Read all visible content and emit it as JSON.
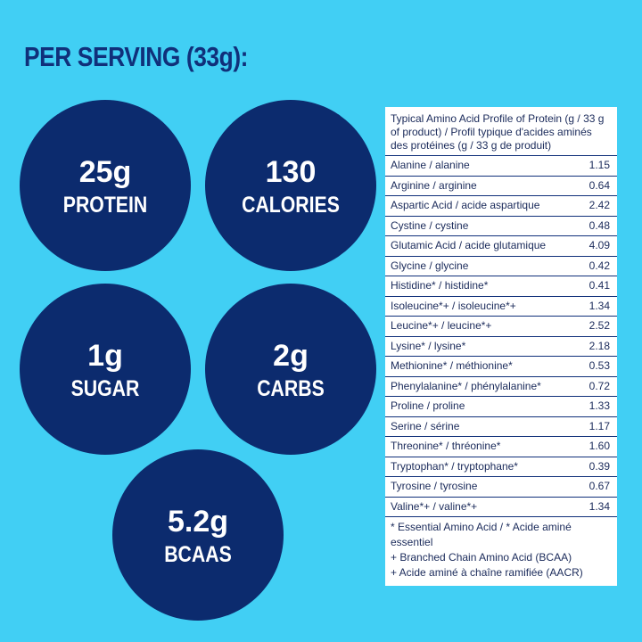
{
  "header": {
    "title": "PER SERVING (33g):"
  },
  "highlights": [
    {
      "value": "25g",
      "label": "PROTEIN"
    },
    {
      "value": "130",
      "label": "CALORIES"
    },
    {
      "value": "1g",
      "label": "SUGAR"
    },
    {
      "value": "2g",
      "label": "CARBS"
    },
    {
      "value": "5.2g",
      "label": "BCAAS"
    }
  ],
  "table": {
    "title": "Typical Amino Acid Profile of Protein (g / 33 g of product) / Profil typique d'acides aminés des protéines (g / 33 g de produit)",
    "rows": [
      [
        "Alanine / alanine",
        "1.15"
      ],
      [
        "Arginine / arginine",
        "0.64"
      ],
      [
        "Aspartic Acid / acide aspartique",
        "2.42"
      ],
      [
        "Cystine / cystine",
        "0.48"
      ],
      [
        "Glutamic Acid / acide glutamique",
        "4.09"
      ],
      [
        "Glycine / glycine",
        "0.42"
      ],
      [
        "Histidine* / histidine*",
        "0.41"
      ],
      [
        "Isoleucine*+ / isoleucine*+",
        "1.34"
      ],
      [
        "Leucine*+ / leucine*+",
        "2.52"
      ],
      [
        "Lysine* / lysine*",
        "2.18"
      ],
      [
        "Methionine* / méthionine*",
        "0.53"
      ],
      [
        "Phenylalanine* / phénylalanine*",
        "0.72"
      ],
      [
        "Proline / proline",
        "1.33"
      ],
      [
        "Serine / sérine",
        "1.17"
      ],
      [
        "Threonine* / thréonine*",
        "1.60"
      ],
      [
        "Tryptophan* / tryptophane*",
        "0.39"
      ],
      [
        "Tyrosine / tyrosine",
        "0.67"
      ],
      [
        "Valine*+ / valine*+",
        "1.34"
      ]
    ],
    "footnotes": [
      "* Essential Amino Acid / * Acide aminé essentiel",
      "+ Branched Chain Amino Acid (BCAA)",
      "+ Acide aminé à chaîne ramifiée (AACR)"
    ]
  }
}
